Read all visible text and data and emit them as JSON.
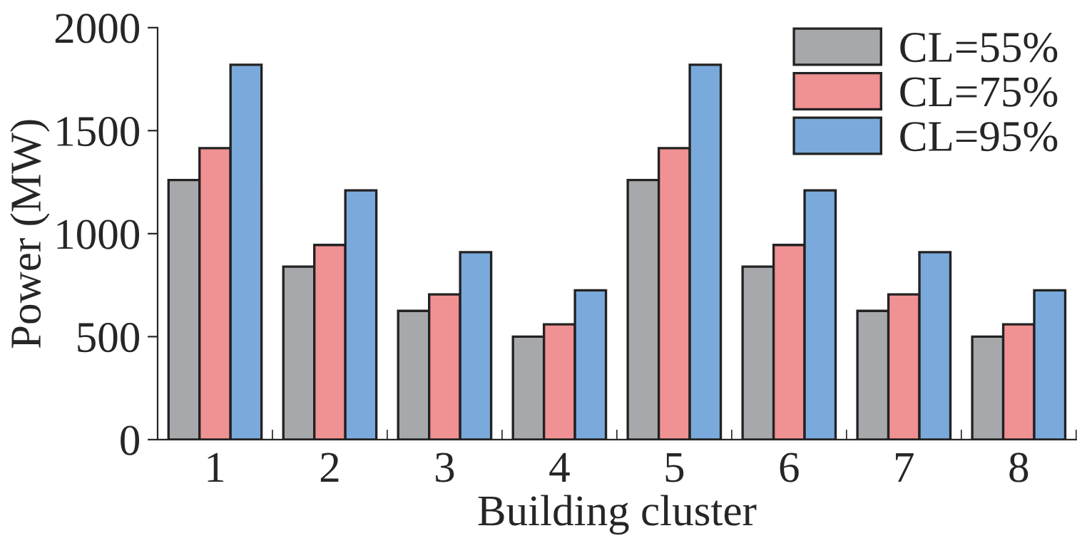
{
  "chart_data": {
    "type": "bar",
    "xlabel": "Building cluster",
    "ylabel": "Power (MW)",
    "categories": [
      "1",
      "2",
      "3",
      "4",
      "5",
      "6",
      "7",
      "8"
    ],
    "series": [
      {
        "name": "CL=55%",
        "color": "#a7a8ab",
        "values": [
          1260,
          840,
          625,
          500,
          1260,
          840,
          625,
          500
        ]
      },
      {
        "name": "CL=75%",
        "color": "#f09193",
        "values": [
          1415,
          945,
          705,
          560,
          1415,
          945,
          705,
          560
        ]
      },
      {
        "name": "CL=95%",
        "color": "#7aaadb",
        "values": [
          1820,
          1210,
          910,
          725,
          1820,
          1210,
          910,
          725
        ]
      }
    ],
    "ylim": [
      0,
      2000
    ],
    "yticks": [
      0,
      500,
      1000,
      1500,
      2000
    ],
    "grid": false,
    "legend": "top right"
  }
}
